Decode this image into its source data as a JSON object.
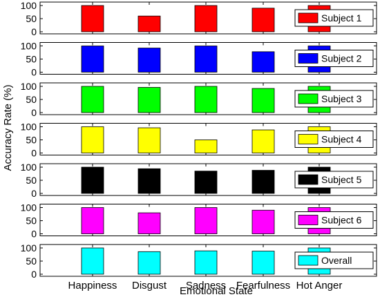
{
  "chart_data": {
    "type": "bar",
    "layout": "stacked-subplots",
    "xlabel": "Emotional State",
    "ylabel": "Accuracy Rate (%)",
    "categories": [
      "Happiness",
      "Disgust",
      "Sadness",
      "Fearfulness",
      "Hot Anger"
    ],
    "ylim": [
      0,
      100
    ],
    "yticks": [
      0,
      50,
      100
    ],
    "legend_position": "right",
    "series": [
      {
        "name": "Subject 1",
        "color": "#ff0000",
        "values": [
          100,
          60,
          100,
          90,
          100
        ]
      },
      {
        "name": "Subject 2",
        "color": "#0000ff",
        "values": [
          100,
          92,
          100,
          78,
          100
        ]
      },
      {
        "name": "Subject 3",
        "color": "#00ff00",
        "values": [
          100,
          96,
          100,
          92,
          100
        ]
      },
      {
        "name": "Subject 4",
        "color": "#ffff00",
        "values": [
          100,
          96,
          50,
          88,
          100
        ]
      },
      {
        "name": "Subject 5",
        "color": "#000000",
        "values": [
          100,
          94,
          85,
          88,
          100
        ]
      },
      {
        "name": "Subject 6",
        "color": "#ff00ff",
        "values": [
          100,
          80,
          100,
          90,
          100
        ]
      },
      {
        "name": "Overall",
        "color": "#00ffff",
        "values": [
          100,
          86,
          89,
          88,
          100
        ]
      }
    ]
  }
}
